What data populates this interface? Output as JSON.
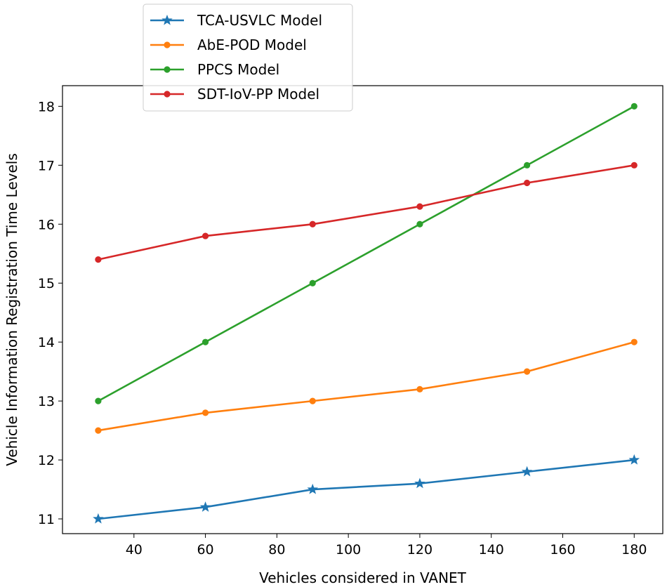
{
  "chart_data": {
    "type": "line",
    "title": "",
    "xlabel": "Vehicles considered in VANET",
    "ylabel": "Vehicle Information Registration Time Levels",
    "x": [
      30,
      60,
      90,
      120,
      150,
      180
    ],
    "xlim": [
      20,
      188
    ],
    "ylim": [
      10.75,
      18.35
    ],
    "xticks": [
      40,
      60,
      80,
      100,
      120,
      140,
      160,
      180
    ],
    "yticks": [
      11,
      12,
      13,
      14,
      15,
      16,
      17,
      18
    ],
    "grid": false,
    "legend_position": "top-left",
    "series": [
      {
        "name": "TCA-USVLC Model",
        "color": "#1f77b4",
        "marker": "star",
        "values": [
          11.0,
          11.2,
          11.5,
          11.6,
          11.8,
          12.0
        ]
      },
      {
        "name": "AbE-POD Model",
        "color": "#ff7f0e",
        "marker": "circle",
        "values": [
          12.5,
          12.8,
          13.0,
          13.2,
          13.5,
          14.0
        ]
      },
      {
        "name": "PPCS Model",
        "color": "#2ca02c",
        "marker": "circle",
        "values": [
          13.0,
          14.0,
          15.0,
          16.0,
          17.0,
          18.0
        ]
      },
      {
        "name": "SDT-IoV-PP Model",
        "color": "#d62728",
        "marker": "circle",
        "values": [
          15.4,
          15.8,
          16.0,
          16.3,
          16.7,
          17.0
        ]
      }
    ]
  }
}
